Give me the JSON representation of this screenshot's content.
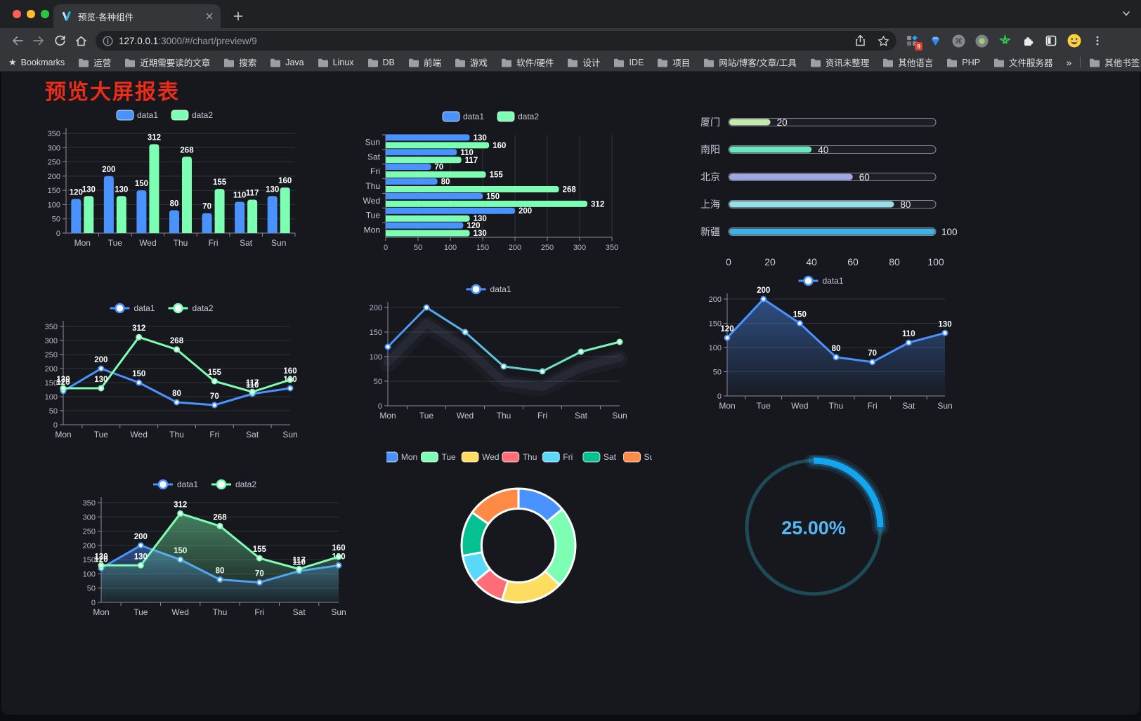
{
  "browser": {
    "tab": {
      "title": "预览-各种组件"
    },
    "url": {
      "host": "127.0.0.1",
      "path": ":3000/#/chart/preview/9"
    },
    "extensions_badge": "9",
    "bookmarks": {
      "root_label": "Bookmarks",
      "folders": [
        "运营",
        "近期需要读的文章",
        "搜索",
        "Java",
        "Linux",
        "DB",
        "前端",
        "游戏",
        "软件/硬件",
        "设计",
        "IDE",
        "项目",
        "网站/博客/文章/工具",
        "资讯未整理",
        "其他语言",
        "PHP",
        "文件服务器"
      ],
      "overflow": "»",
      "other": "其他书签"
    }
  },
  "page": {
    "title": "预览大屏报表",
    "title_color": "#ea2c18"
  },
  "chart_data": [
    {
      "type": "bar",
      "orient": "vertical",
      "categories": [
        "Mon",
        "Tue",
        "Wed",
        "Thu",
        "Fri",
        "Sat",
        "Sun"
      ],
      "series": [
        {
          "name": "data1",
          "color": "#4992ff",
          "values": [
            120,
            200,
            150,
            80,
            70,
            110,
            130
          ]
        },
        {
          "name": "data2",
          "color": "#7cffb2",
          "values": [
            130,
            130,
            312,
            268,
            155,
            117,
            160
          ]
        }
      ],
      "ylim": [
        0,
        350
      ],
      "ystep": 50,
      "value_labels": true,
      "legend_position": "top",
      "grid": true
    },
    {
      "type": "bar",
      "orient": "horizontal",
      "categories": [
        "Mon",
        "Tue",
        "Wed",
        "Thu",
        "Fri",
        "Sat",
        "Sun"
      ],
      "series": [
        {
          "name": "data1",
          "color": "#4992ff",
          "values": [
            120,
            200,
            150,
            80,
            70,
            110,
            130
          ]
        },
        {
          "name": "data2",
          "color": "#7cffb2",
          "values": [
            130,
            130,
            312,
            268,
            155,
            117,
            160
          ]
        }
      ],
      "xlim": [
        0,
        350
      ],
      "xstep": 50,
      "value_labels": true,
      "legend_position": "top",
      "grid": true
    },
    {
      "type": "progress-bar",
      "rows": [
        {
          "label": "厦门",
          "value": 20,
          "color": "#c4ebad"
        },
        {
          "label": "南阳",
          "value": 40,
          "color": "#6be6c1"
        },
        {
          "label": "北京",
          "value": 60,
          "color": "#a0a7e6"
        },
        {
          "label": "上海",
          "value": 80,
          "color": "#96dee8"
        },
        {
          "label": "新疆",
          "value": 100,
          "color": "#3fb1e3"
        }
      ],
      "xlim": [
        0,
        100
      ],
      "xticks": [
        0,
        20,
        40,
        60,
        80,
        100
      ]
    },
    {
      "type": "line",
      "categories": [
        "Mon",
        "Tue",
        "Wed",
        "Thu",
        "Fri",
        "Sat",
        "Sun"
      ],
      "series": [
        {
          "name": "data1",
          "color": "#4992ff",
          "values": [
            120,
            200,
            150,
            80,
            70,
            110,
            130
          ]
        },
        {
          "name": "data2",
          "color": "#7cffb2",
          "values": [
            130,
            130,
            312,
            268,
            155,
            117,
            160
          ]
        }
      ],
      "ylim": [
        0,
        350
      ],
      "ystep": 50,
      "value_labels": true,
      "legend_position": "top",
      "grid": true
    },
    {
      "type": "line",
      "categories": [
        "Mon",
        "Tue",
        "Wed",
        "Thu",
        "Fri",
        "Sat",
        "Sun"
      ],
      "series": [
        {
          "name": "data1",
          "color_start": "#4992ff",
          "color_end": "#7cffb2",
          "values": [
            120,
            200,
            150,
            80,
            70,
            110,
            130
          ]
        }
      ],
      "ylim": [
        0,
        200
      ],
      "ystep": 50,
      "value_labels": false,
      "shadow": true,
      "legend_position": "top",
      "grid": true
    },
    {
      "type": "area",
      "categories": [
        "Mon",
        "Tue",
        "Wed",
        "Thu",
        "Fri",
        "Sat",
        "Sun"
      ],
      "series": [
        {
          "name": "data1",
          "color": "#4992ff",
          "values": [
            120,
            200,
            150,
            80,
            70,
            110,
            130
          ]
        }
      ],
      "ylim": [
        0,
        200
      ],
      "ystep": 50,
      "value_labels": true,
      "legend_position": "top",
      "grid": true
    },
    {
      "type": "area",
      "categories": [
        "Mon",
        "Tue",
        "Wed",
        "Thu",
        "Fri",
        "Sat",
        "Sun"
      ],
      "series": [
        {
          "name": "data1",
          "color": "#4992ff",
          "values": [
            120,
            200,
            150,
            80,
            70,
            110,
            130
          ]
        },
        {
          "name": "data2",
          "color": "#7cffb2",
          "values": [
            130,
            130,
            312,
            268,
            155,
            117,
            160
          ]
        }
      ],
      "ylim": [
        0,
        350
      ],
      "ystep": 50,
      "value_labels": true,
      "legend_position": "top",
      "grid": true
    },
    {
      "type": "pie",
      "categories": [
        "Mon",
        "Tue",
        "Wed",
        "Thu",
        "Fri",
        "Sat",
        "Sun"
      ],
      "values": [
        120,
        200,
        150,
        80,
        70,
        110,
        130
      ],
      "colors": [
        "#4992ff",
        "#7cffb2",
        "#fddd60",
        "#ff6e76",
        "#58d9f9",
        "#05c091",
        "#ff8a45"
      ],
      "inner_radius_ratio": 0.65,
      "legend_position": "top"
    },
    {
      "type": "gauge",
      "value": 25,
      "label": "25.00%",
      "progress_color": "#14a5ef",
      "track_color": "#1d4b57",
      "text_color": "#56b7f3"
    }
  ]
}
